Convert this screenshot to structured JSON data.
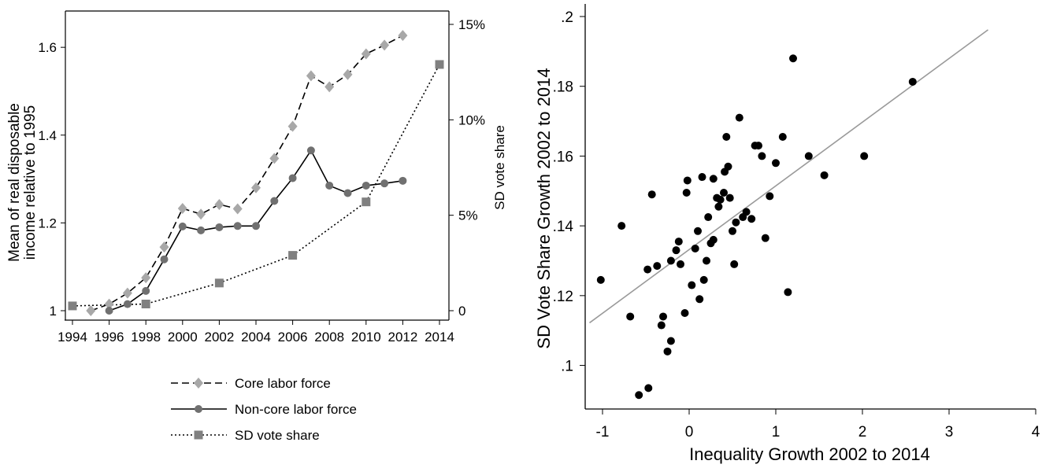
{
  "chart_data": [
    {
      "type": "line",
      "xlabel": "",
      "ylabel": "Mean of real disposable income relative to 1995",
      "ylabel_lines": [
        "Mean of real disposable",
        "income relative to 1995"
      ],
      "y2label": "SD vote share",
      "xlim": [
        1994,
        2014
      ],
      "ylim": [
        1.0,
        1.62
      ],
      "y2lim": [
        0,
        15
      ],
      "x_ticks": [
        "1994",
        "1996",
        "1998",
        "2000",
        "2002",
        "2004",
        "2006",
        "2008",
        "2010",
        "2012",
        "2014"
      ],
      "y_ticks": [
        "1",
        "1.2",
        "1.4",
        "1.6"
      ],
      "y2_ticks": [
        "0",
        "5%",
        "10%",
        "15%"
      ],
      "grid": false,
      "legend_position": "bottom",
      "series": [
        {
          "name": "Core labor force",
          "axis": "left",
          "style": "dashed",
          "marker": "diamond",
          "color": "#a8a8a8",
          "x": [
            1995,
            1996,
            1997,
            1998,
            1999,
            2000,
            2001,
            2002,
            2003,
            2004,
            2005,
            2006,
            2007,
            2008,
            2009,
            2010,
            2011,
            2012
          ],
          "values": [
            1.0,
            1.015,
            1.04,
            1.075,
            1.145,
            1.233,
            1.22,
            1.242,
            1.232,
            1.28,
            1.347,
            1.42,
            1.535,
            1.51,
            1.538,
            1.585,
            1.605,
            1.627
          ]
        },
        {
          "name": "Non-core labor force",
          "axis": "left",
          "style": "solid",
          "marker": "circle",
          "color": "#707070",
          "x": [
            1996,
            1997,
            1998,
            1999,
            2000,
            2001,
            2002,
            2003,
            2004,
            2005,
            2006,
            2007,
            2008,
            2009,
            2010,
            2011,
            2012
          ],
          "values": [
            1.0,
            1.015,
            1.045,
            1.117,
            1.192,
            1.183,
            1.19,
            1.193,
            1.193,
            1.25,
            1.302,
            1.365,
            1.285,
            1.268,
            1.285,
            1.29,
            1.296
          ]
        },
        {
          "name": "SD vote share",
          "axis": "right",
          "style": "dotted",
          "marker": "square",
          "color": "#808080",
          "x": [
            1994,
            1998,
            2002,
            2006,
            2010,
            2014
          ],
          "values": [
            0.25,
            0.35,
            1.45,
            2.9,
            5.7,
            12.9
          ]
        }
      ]
    },
    {
      "type": "scatter",
      "xlabel": "Inequality Growth 2002 to 2014",
      "ylabel": "SD Vote Share Growth 2002 to 2014",
      "xlim": [
        -1.2,
        4.0
      ],
      "ylim": [
        0.09,
        0.2
      ],
      "x_ticks": [
        "-1",
        "0",
        "1",
        "2",
        "3",
        "4"
      ],
      "y_ticks": [
        ".1",
        ".12",
        ".14",
        ".16",
        ".18",
        ".2"
      ],
      "grid": false,
      "marker_color": "#000000",
      "fit_line": {
        "color": "#9a9a9a",
        "x": [
          -1.15,
          3.45
        ],
        "y": [
          0.1122,
          0.1962
        ]
      },
      "points": [
        [
          -1.02,
          0.1245
        ],
        [
          -0.78,
          0.14
        ],
        [
          -0.68,
          0.114
        ],
        [
          -0.58,
          0.0915
        ],
        [
          -0.47,
          0.0935
        ],
        [
          -0.48,
          0.1275
        ],
        [
          -0.43,
          0.149
        ],
        [
          -0.37,
          0.1285
        ],
        [
          -0.32,
          0.1115
        ],
        [
          -0.3,
          0.114
        ],
        [
          -0.25,
          0.104
        ],
        [
          -0.21,
          0.107
        ],
        [
          -0.21,
          0.13
        ],
        [
          -0.15,
          0.133
        ],
        [
          -0.12,
          0.1355
        ],
        [
          -0.1,
          0.129
        ],
        [
          -0.05,
          0.115
        ],
        [
          -0.03,
          0.1495
        ],
        [
          -0.02,
          0.153
        ],
        [
          0.03,
          0.123
        ],
        [
          0.07,
          0.1335
        ],
        [
          0.1,
          0.1385
        ],
        [
          0.12,
          0.119
        ],
        [
          0.15,
          0.154
        ],
        [
          0.17,
          0.1245
        ],
        [
          0.2,
          0.13
        ],
        [
          0.22,
          0.1425
        ],
        [
          0.25,
          0.135
        ],
        [
          0.28,
          0.136
        ],
        [
          0.28,
          0.1535
        ],
        [
          0.32,
          0.148
        ],
        [
          0.34,
          0.1455
        ],
        [
          0.36,
          0.1475
        ],
        [
          0.4,
          0.1495
        ],
        [
          0.41,
          0.1555
        ],
        [
          0.43,
          0.1655
        ],
        [
          0.45,
          0.157
        ],
        [
          0.47,
          0.148
        ],
        [
          0.5,
          0.1385
        ],
        [
          0.52,
          0.129
        ],
        [
          0.54,
          0.141
        ],
        [
          0.58,
          0.171
        ],
        [
          0.62,
          0.1425
        ],
        [
          0.66,
          0.144
        ],
        [
          0.72,
          0.142
        ],
        [
          0.76,
          0.163
        ],
        [
          0.8,
          0.163
        ],
        [
          0.84,
          0.16
        ],
        [
          0.88,
          0.1365
        ],
        [
          0.93,
          0.1485
        ],
        [
          1.0,
          0.158
        ],
        [
          1.08,
          0.1655
        ],
        [
          1.14,
          0.121
        ],
        [
          1.2,
          0.188
        ],
        [
          1.38,
          0.16
        ],
        [
          1.56,
          0.1545
        ],
        [
          2.02,
          0.16
        ],
        [
          2.58,
          0.1813
        ]
      ]
    }
  ]
}
